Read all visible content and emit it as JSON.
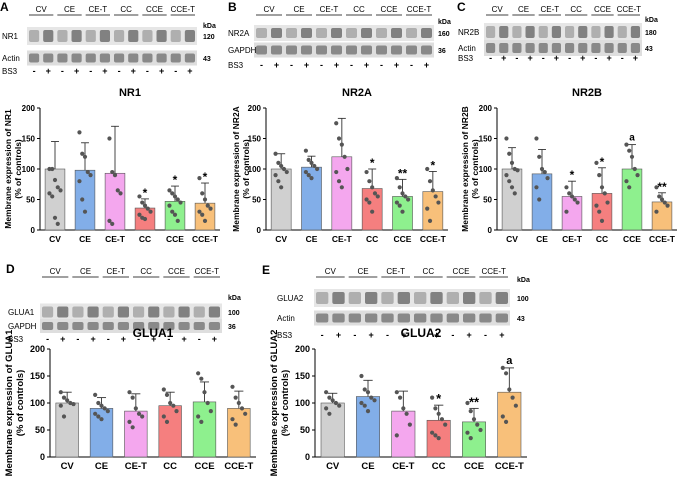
{
  "figure": {
    "group_colors": {
      "CV": "#d0d0d0",
      "CE": "#82aee8",
      "CE-T": "#f4a7ee",
      "CC": "#f57f7f",
      "CCE": "#8ef08e",
      "CCE-T": "#f8c07a"
    },
    "blots": [
      {
        "letter": "A",
        "rows": [
          "NR1",
          "Actin"
        ],
        "markers": [
          "120",
          "43"
        ],
        "kda": "kDa",
        "bs3_label": "BS3",
        "signs": [
          "-",
          "+",
          "-",
          "+",
          "-",
          "+",
          "-",
          "+",
          "-",
          "+",
          "-",
          "+"
        ]
      },
      {
        "letter": "B",
        "rows": [
          "NR2A",
          "GAPDH"
        ],
        "markers": [
          "160",
          "36"
        ],
        "kda": "kDa",
        "bs3_label": "BS3",
        "signs": [
          "-",
          "+",
          "-",
          "+",
          "-",
          "+",
          "-",
          "+",
          "-",
          "+",
          "-",
          "+"
        ]
      },
      {
        "letter": "C",
        "rows": [
          "NR2B",
          "Actin"
        ],
        "markers": [
          "180",
          "43"
        ],
        "kda": "kDa",
        "bs3_label": "BS3",
        "signs": [
          "-",
          "+",
          "-",
          "+",
          "-",
          "+",
          "-",
          "+",
          "-",
          "+",
          "-",
          "+"
        ]
      },
      {
        "letter": "D",
        "rows": [
          "GLUA1",
          "GAPDH"
        ],
        "markers": [
          "100",
          "36"
        ],
        "kda": "kDa",
        "bs3_label": "BS3",
        "signs": [
          "-",
          "+",
          "-",
          "+",
          "-",
          "+",
          "-",
          "+",
          "-",
          "+",
          "-",
          "+"
        ]
      },
      {
        "letter": "E",
        "rows": [
          "GLUA2",
          "Actin"
        ],
        "markers": [
          "100",
          "43"
        ],
        "kda": "kDa",
        "bs3_label": "BS3",
        "signs": [
          "-",
          "+",
          "-",
          "+",
          "-",
          "+",
          "-",
          "+",
          "-",
          "+",
          "-",
          "+"
        ]
      }
    ]
  },
  "chart_data": [
    {
      "type": "bar",
      "title": "NR1",
      "ylabel": "Membrane expression of NR1 (% of controls)",
      "ylim": [
        0,
        200
      ],
      "yticks": [
        0,
        50,
        100,
        150,
        200
      ],
      "categories": [
        "CV",
        "CE",
        "CE-T",
        "CC",
        "CCE",
        "CCE-T"
      ],
      "values": [
        100,
        98,
        93,
        36,
        47,
        44
      ],
      "errors": [
        45,
        45,
        77,
        15,
        25,
        33
      ],
      "significance": [
        "",
        "",
        "",
        "*",
        "*",
        "*"
      ],
      "points": [
        [
          100,
          100,
          82,
          70,
          65,
          60,
          55,
          20,
          10
        ],
        [
          160,
          125,
          120,
          95,
          90,
          80,
          50,
          30
        ],
        [
          150,
          95,
          90,
          65,
          60,
          15,
          10
        ],
        [
          55,
          45,
          40,
          35,
          30,
          25,
          20,
          18
        ],
        [
          65,
          60,
          55,
          50,
          45,
          40,
          30,
          25,
          15
        ],
        [
          85,
          60,
          50,
          40,
          35,
          30,
          25,
          15
        ]
      ]
    },
    {
      "type": "bar",
      "title": "NR2A",
      "ylabel": "Membrane expression of NR2A (% of controls)",
      "ylim": [
        0,
        200
      ],
      "yticks": [
        0,
        50,
        100,
        150,
        200
      ],
      "categories": [
        "CV",
        "CE",
        "CE-T",
        "CC",
        "CCE",
        "CCE-T"
      ],
      "values": [
        100,
        103,
        120,
        68,
        55,
        63
      ],
      "errors": [
        25,
        18,
        63,
        32,
        28,
        33
      ],
      "significance": [
        "",
        "",
        "",
        "*",
        "**",
        "*"
      ],
      "points": [
        [
          125,
          110,
          105,
          100,
          95,
          90,
          80,
          70
        ],
        [
          130,
          115,
          110,
          105,
          100,
          95,
          90,
          85
        ],
        [
          175,
          150,
          140,
          120,
          100,
          95,
          80,
          70
        ],
        [
          95,
          80,
          70,
          60,
          55,
          50,
          45,
          30
        ],
        [
          85,
          70,
          60,
          55,
          50,
          45,
          40,
          30
        ],
        [
          100,
          80,
          65,
          55,
          45,
          35,
          15
        ]
      ]
    },
    {
      "type": "bar",
      "title": "NR2B",
      "ylabel": "Membrane expression of NR2B (% of controls)",
      "ylim": [
        0,
        200
      ],
      "yticks": [
        0,
        50,
        100,
        150,
        200
      ],
      "categories": [
        "CV",
        "CE",
        "CE-T",
        "CC",
        "CCE",
        "CCE-T"
      ],
      "values": [
        100,
        92,
        55,
        60,
        100,
        46
      ],
      "errors": [
        35,
        40,
        25,
        42,
        40,
        15
      ],
      "significance": [
        "",
        "",
        "*",
        "*",
        "a",
        "**"
      ],
      "points": [
        [
          150,
          125,
          110,
          100,
          98,
          90,
          80,
          70,
          60
        ],
        [
          150,
          120,
          100,
          95,
          85,
          70,
          50
        ],
        [
          70,
          60,
          55,
          50,
          45,
          30
        ],
        [
          110,
          90,
          70,
          60,
          45,
          40,
          30,
          15
        ],
        [
          140,
          130,
          120,
          100,
          90,
          80,
          70
        ],
        [
          70,
          55,
          50,
          45,
          40,
          30
        ]
      ]
    },
    {
      "type": "bar",
      "title": "GLUA1",
      "ylabel": "Membrane expression of GLUA1 (% of controls)",
      "ylim": [
        0,
        200
      ],
      "yticks": [
        0,
        50,
        100,
        150,
        200
      ],
      "categories": [
        "CV",
        "CE",
        "CE-T",
        "CC",
        "CCE",
        "CCE-T"
      ],
      "values": [
        100,
        90,
        85,
        95,
        102,
        90
      ],
      "errors": [
        20,
        20,
        32,
        25,
        37,
        32
      ],
      "significance": [
        "",
        "",
        "",
        "",
        "",
        ""
      ],
      "points": [
        [
          120,
          110,
          105,
          100,
          98,
          95,
          75
        ],
        [
          115,
          100,
          95,
          90,
          85,
          80,
          75,
          70
        ],
        [
          120,
          110,
          90,
          80,
          75,
          65,
          55
        ],
        [
          125,
          115,
          100,
          95,
          85,
          75,
          65
        ],
        [
          155,
          145,
          120,
          100,
          85,
          75,
          65
        ],
        [
          130,
          110,
          100,
          90,
          80,
          70,
          60
        ]
      ]
    },
    {
      "type": "bar",
      "title": "GLUA2",
      "ylabel": "Membrane expression of GLUA2 (% of controls)",
      "ylim": [
        0,
        200
      ],
      "yticks": [
        0,
        50,
        100,
        150,
        200
      ],
      "categories": [
        "CV",
        "CE",
        "CE-T",
        "CC",
        "CCE",
        "CCE-T"
      ],
      "values": [
        100,
        112,
        85,
        68,
        65,
        120
      ],
      "errors": [
        18,
        30,
        37,
        28,
        25,
        45
      ],
      "significance": [
        "",
        "",
        "",
        "*",
        "**",
        "a"
      ],
      "points": [
        [
          120,
          110,
          105,
          100,
          95,
          90,
          80
        ],
        [
          150,
          125,
          120,
          110,
          105,
          100,
          95,
          85
        ],
        [
          120,
          110,
          90,
          80,
          60,
          40
        ],
        [
          110,
          90,
          80,
          70,
          60,
          45,
          40,
          35
        ],
        [
          100,
          85,
          70,
          60,
          50,
          45,
          35
        ],
        [
          165,
          155,
          125,
          110,
          95,
          75,
          65
        ]
      ]
    }
  ]
}
